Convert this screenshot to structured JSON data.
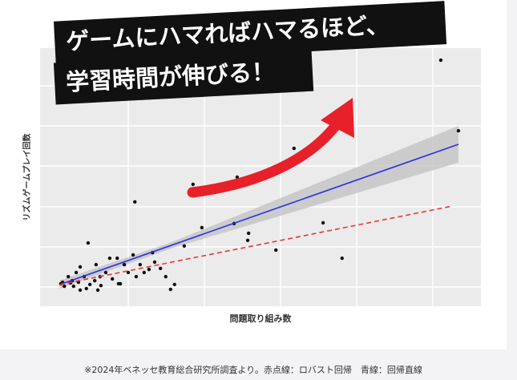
{
  "chart_data": {
    "type": "scatter",
    "annotations": [
      "ゲームにハマればハマるほど、",
      "学習時間が伸びる！"
    ],
    "x_label": "問題取り組み数",
    "y_label": "リズムゲームプレイ回数",
    "caption": "※2024年ベネッセ教育総合研究所調査より。赤点線：ロバスト回帰　青線：回帰直線",
    "xlim": [
      0,
      100
    ],
    "ylim": [
      0,
      100
    ],
    "grid": true,
    "points": {
      "color": "#111111",
      "x": [
        90.9,
        94.9,
        57.6,
        44.7,
        34.7,
        34.7,
        21.5,
        44.0,
        36.7,
        64.2,
        47.3,
        47.1,
        53.5,
        68.5,
        32.7,
        25.5,
        26.0,
        30.5,
        29.6,
        10.9,
        15.8,
        17.5,
        21.1,
        27.3,
        28.5,
        23.6,
        20.0,
        12.7,
        9.1,
        8.2,
        6.4,
        5.1,
        5.5,
        7.3,
        10.0,
        11.3,
        12.4,
        13.6,
        14.9,
        16.4,
        17.8,
        18.2,
        10.5,
        9.1,
        7.6,
        13.1,
        21.8,
        22.7,
        4.7,
        6.9,
        8.7,
        13.8,
        24.7,
        19.1
      ],
      "y": [
        95.9,
        68.2,
        61.3,
        50.0,
        47.2,
        43.1,
        40.3,
        31.8,
        30.2,
        32.1,
        28.0,
        25.2,
        21.4,
        18.2,
        23.0,
        20.4,
        16.7,
        7.9,
        6.0,
        24.2,
        18.2,
        18.2,
        19.5,
        14.2,
        11.0,
        12.6,
        12.6,
        15.7,
        14.8,
        12.6,
        11.0,
        8.8,
        7.2,
        9.4,
        11.0,
        7.9,
        9.4,
        11.0,
        12.6,
        10.1,
        8.2,
        8.2,
        6.3,
        5.7,
        7.2,
        5.7,
        11.0,
        15.7,
        8.2,
        8.5,
        8.8,
        7.5,
        13.8,
        15.7
      ]
    },
    "band": {
      "color": "#c6c6c6",
      "x": [
        4.5,
        30,
        94.9
      ],
      "upper": [
        9.5,
        24.6,
        70.1
      ],
      "lower": [
        6.3,
        22.2,
        55.7
      ]
    },
    "lines": [
      {
        "color": "#2f2fe0",
        "style": "solid",
        "x": [
          4.5,
          94.9
        ],
        "y": [
          7.9,
          62.9
        ]
      },
      {
        "color": "#e53935",
        "style": "dashed",
        "x": [
          4.5,
          93.6
        ],
        "y": [
          7.9,
          38.7
        ]
      }
    ]
  }
}
